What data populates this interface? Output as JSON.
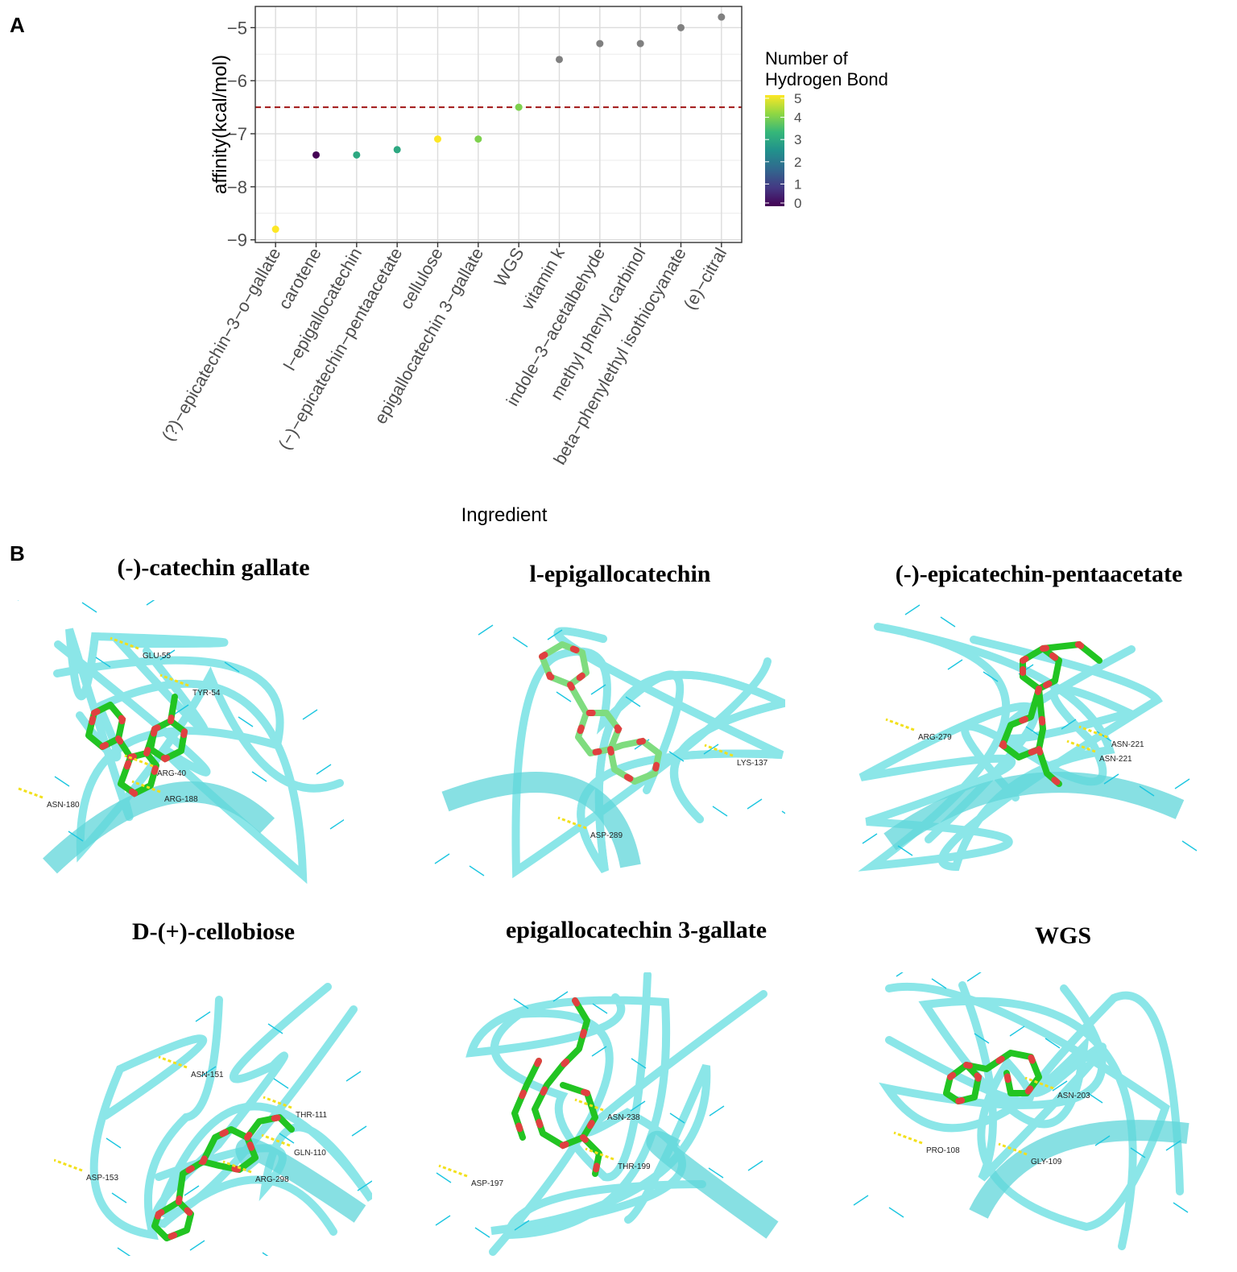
{
  "panel_a_label": "A",
  "panel_b_label": "B",
  "chart_data": {
    "type": "scatter",
    "xlabel": "Ingredient",
    "ylabel": "affinity(kcal/mol)",
    "ylim": [
      -9.05,
      -4.6
    ],
    "yticks": [
      -9,
      -8,
      -7,
      -6,
      -5
    ],
    "ytick_labels": [
      "−9",
      "−8",
      "−7",
      "−6",
      "−5"
    ],
    "grid": true,
    "reference_line": {
      "y": -6.5,
      "style": "dashed",
      "color": "#a01515"
    },
    "categories": [
      "(?)−epicatechin−3−o−gallate",
      "carotene",
      "l−epigallocatechin",
      "(−)−epicatechin−pentaacetate",
      "cellulose",
      "epigallocatechin 3−gallate",
      "WGS",
      "vitamin k",
      "indole−3−acetalbehyde",
      "methyl phenyl carbinol",
      "beta−phenylethyl isothiocyanate",
      "(e)−citral"
    ],
    "values": [
      -8.8,
      -7.4,
      -7.4,
      -7.3,
      -7.1,
      -7.1,
      -6.5,
      -5.6,
      -5.3,
      -5.3,
      -5.0,
      -4.8
    ],
    "hydrogen_bonds": [
      5,
      0,
      3,
      3,
      5,
      4,
      4,
      null,
      null,
      null,
      null,
      null
    ],
    "na_color": "#808080",
    "legend": {
      "title_line1": "Number of",
      "title_line2": "Hydrogen Bond",
      "ticks": [
        "5",
        "4",
        "3",
        "2",
        "1",
        "0"
      ],
      "placement": "right",
      "colors": [
        "#440154",
        "#443983",
        "#31688e",
        "#21918c",
        "#35b779",
        "#90d743",
        "#fde725"
      ]
    }
  },
  "panel_b": {
    "molecules": [
      {
        "title": "(-)-catechin gallate",
        "labels": [
          "GLU-55",
          "TYR-54",
          "ARG-40",
          "ARG-188",
          "ASN-180"
        ]
      },
      {
        "title": "l-epigallocatechin",
        "labels": [
          "LYS-137",
          "ASP-289"
        ]
      },
      {
        "title": "(-)-epicatechin-pentaacetate",
        "labels": [
          "ARG-279",
          "ASN-221",
          "ASN-221"
        ]
      },
      {
        "title": "D-(+)-cellobiose",
        "labels": [
          "ASN-151",
          "THR-111",
          "GLN-110",
          "ASP-153",
          "ARG-298"
        ]
      },
      {
        "title": "epigallocatechin 3-gallate",
        "labels": [
          "ASN-238",
          "THR-199",
          "ASP-197"
        ]
      },
      {
        "title": "WGS",
        "labels": [
          "ASN-203",
          "PRO-108",
          "GLY-109"
        ]
      }
    ]
  }
}
